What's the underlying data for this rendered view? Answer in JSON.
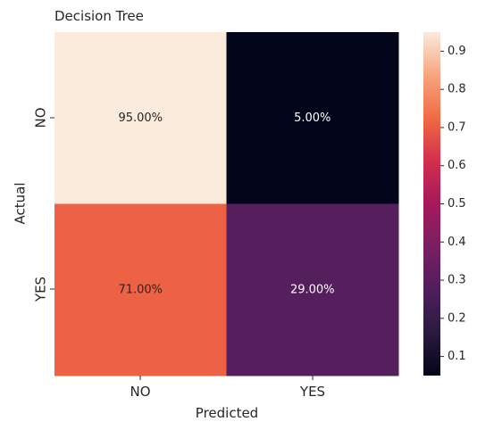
{
  "chart_data": {
    "type": "heatmap",
    "title": "Decision Tree",
    "xlabel": "Predicted",
    "ylabel": "Actual",
    "x_categories": [
      "NO",
      "YES"
    ],
    "y_categories": [
      "NO",
      "YES"
    ],
    "values": [
      [
        0.95,
        0.05
      ],
      [
        0.71,
        0.29
      ]
    ],
    "annotations": [
      [
        "95.00%",
        "5.00%"
      ],
      [
        "71.00%",
        "29.00%"
      ]
    ],
    "colorbar": {
      "range": [
        0.05,
        0.95
      ],
      "ticks": [
        0.1,
        0.2,
        0.3,
        0.4,
        0.5,
        0.6,
        0.7,
        0.8,
        0.9
      ],
      "tick_labels": [
        "0.1",
        "0.2",
        "0.3",
        "0.4",
        "0.5",
        "0.6",
        "0.7",
        "0.8",
        "0.9"
      ]
    },
    "colormap": "rocket",
    "grid": false
  }
}
